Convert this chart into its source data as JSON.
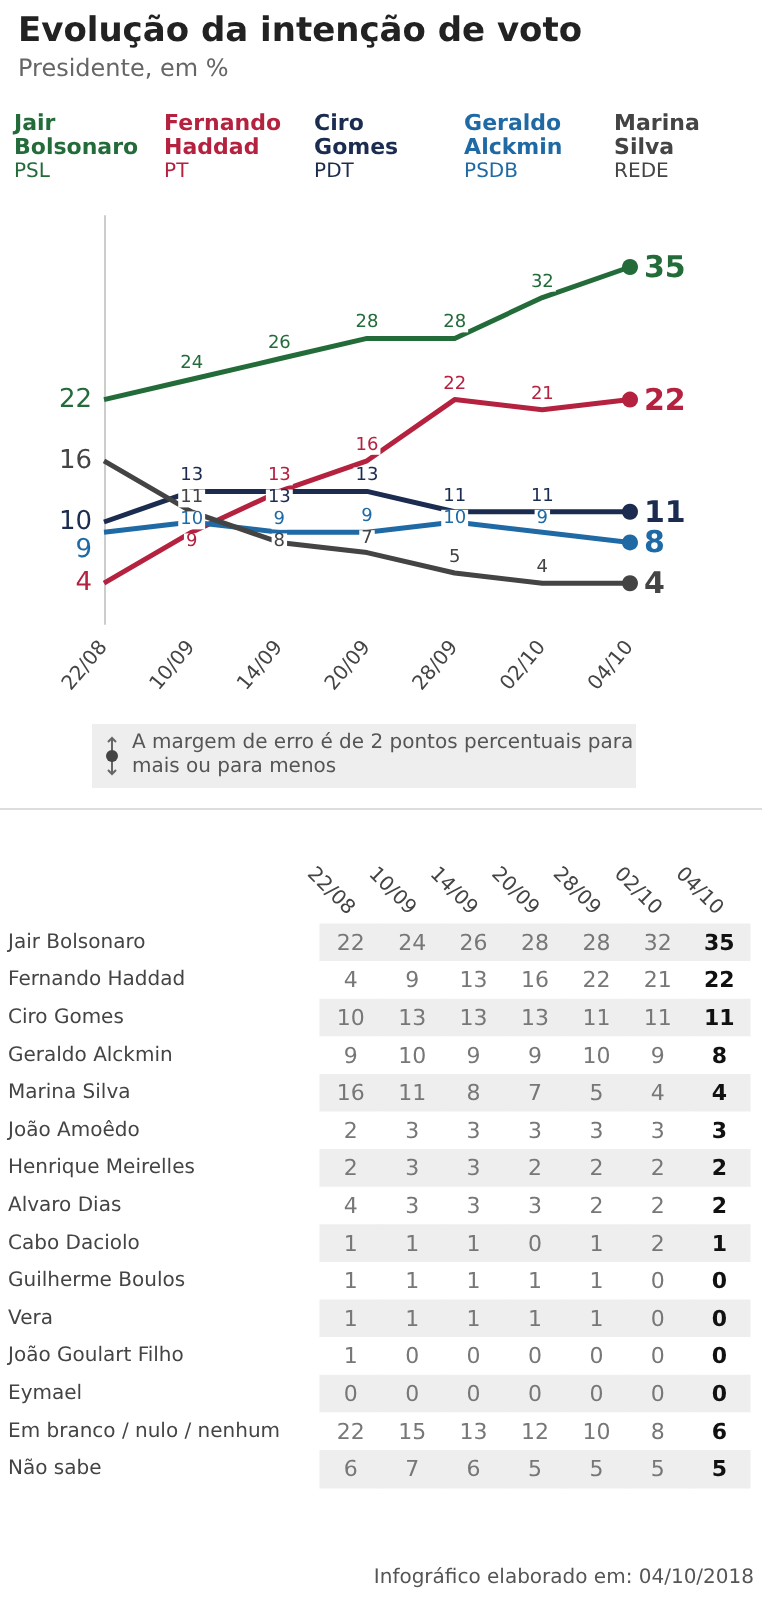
{
  "chart_data": [
    {
      "type": "line",
      "title": "Evolução da intenção de voto",
      "subtitle": "Presidente, em %",
      "categories": [
        "22/08",
        "10/09",
        "14/09",
        "20/09",
        "28/09",
        "02/10",
        "04/10"
      ],
      "series": [
        {
          "name": "Jair Bolsonaro\nPSL",
          "color": "#236c3a",
          "values": [
            22,
            24,
            26,
            28,
            28,
            32,
            35
          ]
        },
        {
          "name": "Fernando Haddad\nPT",
          "color": "#b5223f",
          "values": [
            4,
            9,
            13,
            16,
            22,
            21,
            22
          ]
        },
        {
          "name": "Ciro Gomes\nPDT",
          "color": "#1b2c50",
          "values": [
            10,
            13,
            13,
            13,
            11,
            11,
            11
          ]
        },
        {
          "name": "Geraldo Alckmin\nPSDB",
          "color": "#1f6aa5",
          "values": [
            9,
            10,
            9,
            9,
            10,
            9,
            8
          ]
        },
        {
          "name": "Marina Silva\nREDE",
          "color": "#444444",
          "values": [
            16,
            11,
            8,
            7,
            5,
            4,
            4
          ]
        }
      ],
      "data_labels": true,
      "legend": "top",
      "tick_labels": "x",
      "annotations": [
        "A margem de erro é de 2 pontos percentuais para mais ou para menos"
      ]
    },
    {
      "type": "heatmap",
      "categories": [
        "22/08",
        "10/09",
        "14/09",
        "20/09",
        "28/09",
        "02/10",
        "04/10"
      ],
      "y_categories": [
        "Jair Bolsonaro",
        "Fernando Haddad",
        "Ciro Gomes",
        "Geraldo Alckmin",
        "Marina Silva",
        "João Amoêdo",
        "Henrique Meirelles",
        "Alvaro Dias",
        "Cabo Daciolo",
        "Guilherme Boulos",
        "Vera",
        "João Goulart Filho",
        "Eymael",
        "Em branco / nulo / nenhum",
        "Não sabe"
      ],
      "cells": [
        [
          22,
          24,
          26,
          28,
          28,
          32,
          35
        ],
        [
          4,
          9,
          13,
          16,
          22,
          21,
          22
        ],
        [
          10,
          13,
          13,
          13,
          11,
          11,
          11
        ],
        [
          9,
          10,
          9,
          9,
          10,
          9,
          8
        ],
        [
          16,
          11,
          8,
          7,
          5,
          4,
          4
        ],
        [
          2,
          3,
          3,
          3,
          3,
          3,
          3
        ],
        [
          2,
          3,
          3,
          2,
          2,
          2,
          2
        ],
        [
          4,
          3,
          3,
          3,
          2,
          2,
          2
        ],
        [
          1,
          1,
          1,
          0,
          1,
          2,
          1
        ],
        [
          1,
          1,
          1,
          1,
          1,
          0,
          0
        ],
        [
          1,
          1,
          1,
          1,
          1,
          0,
          0
        ],
        [
          1,
          0,
          0,
          0,
          0,
          0,
          0
        ],
        [
          0,
          0,
          0,
          0,
          0,
          0,
          0
        ],
        [
          22,
          15,
          13,
          12,
          10,
          8,
          6
        ],
        [
          6,
          7,
          6,
          5,
          5,
          5,
          5
        ]
      ],
      "data_labels": true,
      "annotations": [
        "Infográfico elaborado em: 04/10/2018"
      ]
    }
  ]
}
